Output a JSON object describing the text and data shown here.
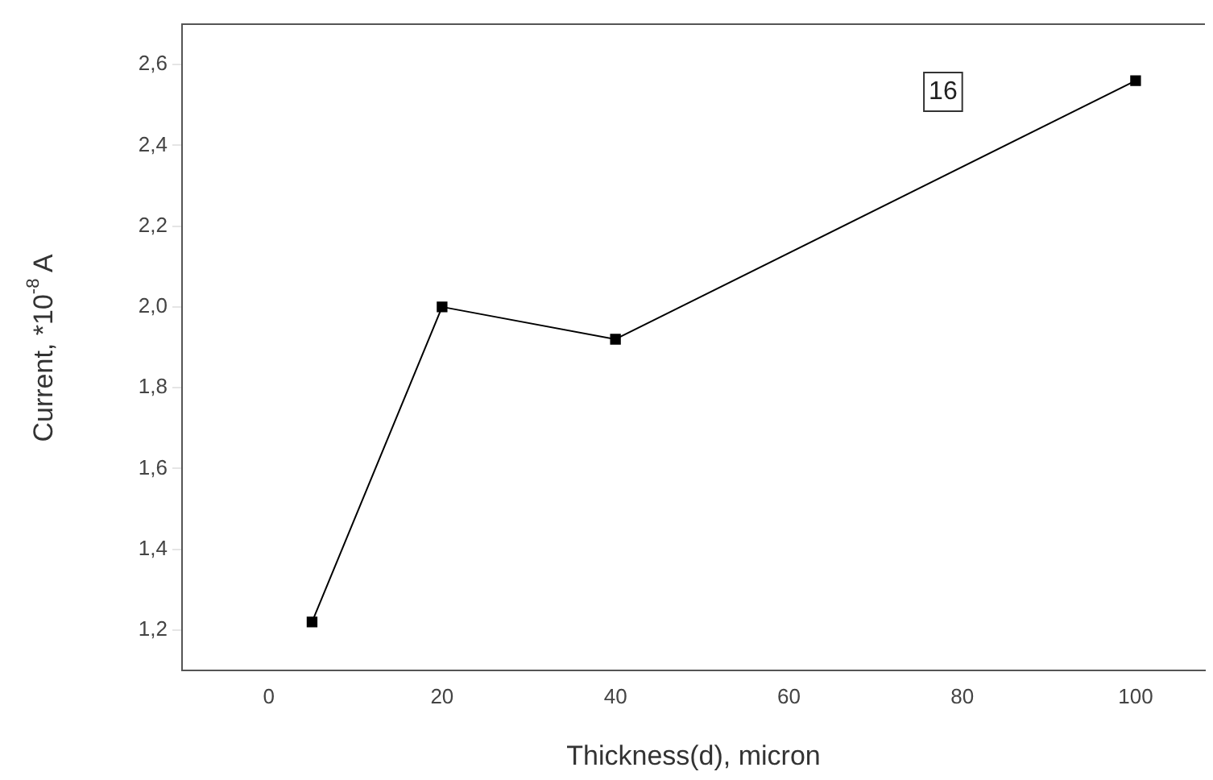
{
  "chart_data": {
    "type": "line",
    "xlabel": "Thickness(d), micron",
    "ylabel": "Current, *10$^{-8}$ A",
    "x": [
      5,
      20,
      40,
      100
    ],
    "series": [
      {
        "color": "#000000",
        "values": [
          1.22,
          2.0,
          1.92,
          2.56
        ]
      }
    ],
    "xlim": [
      -10,
      108
    ],
    "xticks": [
      0,
      20,
      40,
      60,
      80,
      100
    ],
    "ylim": [
      1.1,
      2.7
    ],
    "yticks": [
      {
        "value": 1.2,
        "label": "1,2"
      },
      {
        "value": 1.4,
        "label": "1,4"
      },
      {
        "value": 1.6,
        "label": "1,6"
      },
      {
        "value": 1.8,
        "label": "1,8"
      },
      {
        "value": 2.0,
        "label": "2,0"
      },
      {
        "value": 2.2,
        "label": "2,2"
      },
      {
        "value": 2.4,
        "label": "2,4"
      },
      {
        "value": 2.6,
        "label": "2,6"
      }
    ],
    "annotations": [
      "16"
    ],
    "marker": "square",
    "line_style": "solid",
    "grid": false,
    "legend": false
  }
}
